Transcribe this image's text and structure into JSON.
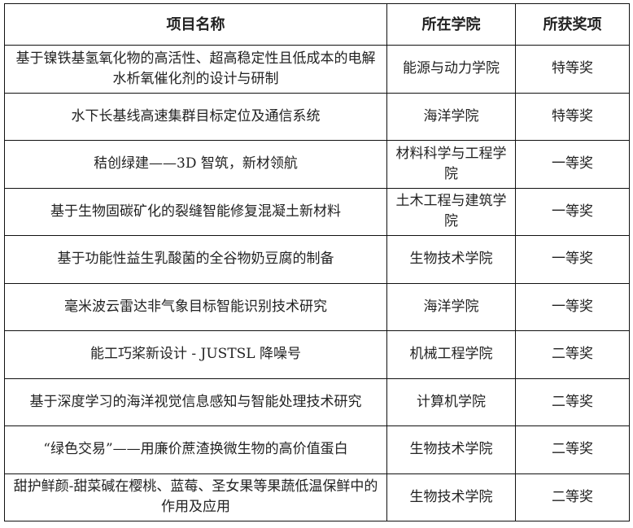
{
  "headers": [
    "项目名称",
    "所在学院",
    "所获奖项"
  ],
  "rows": [
    {
      "name": "基于镍铁基氢氧化物的高活性、超高稳定性且低成本的电解水析氧催化剂的设计与研制",
      "college": "能源与动力学院",
      "award": "特等奖"
    },
    {
      "name": "水下长基线高速集群目标定位及通信系统",
      "college": "海洋学院",
      "award": "特等奖"
    },
    {
      "name": "秸创绿建——3D 智筑，新材领航",
      "college": "材料科学与工程学院",
      "award": "一等奖"
    },
    {
      "name": "基于生物固碳矿化的裂缝智能修复混凝土新材料",
      "college": "土木工程与建筑学院",
      "award": "一等奖"
    },
    {
      "name": "基于功能性益生乳酸菌的全谷物奶豆腐的制备",
      "college": "生物技术学院",
      "award": "一等奖"
    },
    {
      "name": "毫米波云雷达非气象目标智能识别技术研究",
      "college": "海洋学院",
      "award": "一等奖"
    },
    {
      "name": "能工巧桨新设计 - JUSTSL 降噪号",
      "college": "机械工程学院",
      "award": "二等奖"
    },
    {
      "name": "基于深度学习的海洋视觉信息感知与智能处理技术研究",
      "college": "计算机学院",
      "award": "二等奖"
    },
    {
      "name": "“绿色交易”——用廉价蔗渣换微生物的高价值蛋白",
      "college": "生物技术学院",
      "award": "二等奖"
    },
    {
      "name": "甜护鲜颜-甜菜碱在樱桃、蓝莓、圣女果等果蔬低温保鲜中的作用及应用",
      "college": "生物技术学院",
      "award": "二等奖"
    }
  ]
}
